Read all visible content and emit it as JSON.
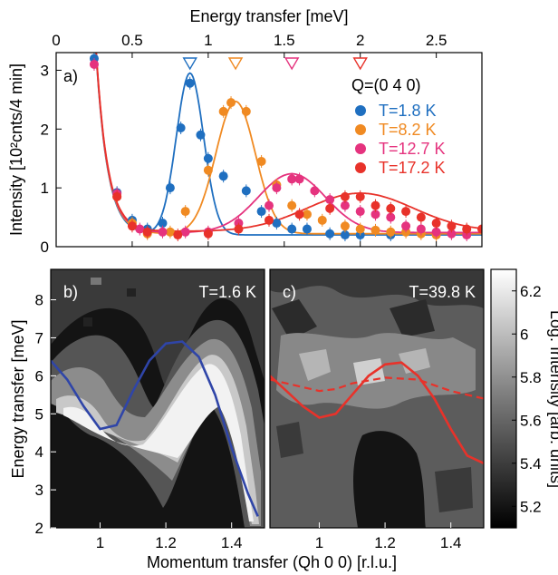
{
  "chart_data": [
    {
      "panel": "a)",
      "type": "line",
      "annotation": "Q=(0 4 0)",
      "xlabel": "Energy transfer [meV]",
      "ylabel": "Intensity [10²cnts/4 min]",
      "xlim": [
        0,
        2.8
      ],
      "ylim": [
        0,
        3.3
      ],
      "xticks": [
        "0",
        "0.5",
        "1",
        "1.5",
        "2",
        "2.5"
      ],
      "yticks": [
        "0",
        "1",
        "2",
        "3"
      ],
      "legend_position": "right",
      "series": [
        {
          "name": "T=1.8 K",
          "color": "#1f6fc0",
          "points": [
            [
              0.25,
              3.2
            ],
            [
              0.4,
              0.92
            ],
            [
              0.5,
              0.45
            ],
            [
              0.6,
              0.3
            ],
            [
              0.7,
              0.4
            ],
            [
              0.75,
              1.0
            ],
            [
              0.82,
              2.02
            ],
            [
              0.88,
              2.78
            ],
            [
              0.95,
              1.9
            ],
            [
              1.0,
              1.5
            ],
            [
              1.1,
              1.2
            ],
            [
              1.25,
              0.95
            ],
            [
              1.35,
              0.6
            ],
            [
              1.45,
              0.4
            ],
            [
              1.55,
              0.3
            ],
            [
              1.65,
              0.3
            ],
            [
              1.8,
              0.22
            ],
            [
              1.9,
              0.2
            ],
            [
              2.0,
              0.2
            ],
            [
              2.2,
              0.2
            ]
          ],
          "fit_peak": 0.88,
          "fit_amp": 2.75,
          "fit_width": 0.09
        },
        {
          "name": "T=8.2 K",
          "color": "#f08a22",
          "points": [
            [
              0.4,
              0.85
            ],
            [
              0.5,
              0.4
            ],
            [
              0.6,
              0.22
            ],
            [
              0.75,
              0.25
            ],
            [
              0.85,
              0.6
            ],
            [
              1.0,
              1.3
            ],
            [
              1.1,
              2.3
            ],
            [
              1.15,
              2.45
            ],
            [
              1.25,
              2.3
            ],
            [
              1.35,
              1.45
            ],
            [
              1.45,
              1.05
            ],
            [
              1.55,
              0.7
            ],
            [
              1.65,
              0.55
            ],
            [
              1.75,
              0.45
            ],
            [
              1.9,
              0.35
            ],
            [
              2.0,
              0.3
            ],
            [
              2.1,
              0.28
            ],
            [
              2.2,
              0.25
            ],
            [
              2.3,
              0.25
            ],
            [
              2.4,
              0.22
            ],
            [
              2.5,
              0.2
            ]
          ],
          "fit_peak": 1.18,
          "fit_amp": 2.25,
          "fit_width": 0.13
        },
        {
          "name": "T=12.7 K",
          "color": "#e5337e",
          "points": [
            [
              0.25,
              3.1
            ],
            [
              0.4,
              0.9
            ],
            [
              0.55,
              0.3
            ],
            [
              0.7,
              0.25
            ],
            [
              0.85,
              0.25
            ],
            [
              1.0,
              0.25
            ],
            [
              1.2,
              0.4
            ],
            [
              1.4,
              0.7
            ],
            [
              1.45,
              1.0
            ],
            [
              1.55,
              1.15
            ],
            [
              1.6,
              1.15
            ],
            [
              1.7,
              0.95
            ],
            [
              1.8,
              0.8
            ],
            [
              1.9,
              0.7
            ],
            [
              2.0,
              0.6
            ],
            [
              2.1,
              0.55
            ],
            [
              2.2,
              0.5
            ],
            [
              2.3,
              0.35
            ],
            [
              2.4,
              0.3
            ],
            [
              2.5,
              0.25
            ],
            [
              2.6,
              0.22
            ],
            [
              2.7,
              0.2
            ]
          ],
          "fit_peak": 1.55,
          "fit_amp": 1.0,
          "fit_width": 0.22
        },
        {
          "name": "T=17.2 K",
          "color": "#e8322a",
          "points": [
            [
              0.4,
              0.85
            ],
            [
              0.5,
              0.35
            ],
            [
              0.6,
              0.25
            ],
            [
              0.8,
              0.2
            ],
            [
              1.0,
              0.22
            ],
            [
              1.2,
              0.3
            ],
            [
              1.4,
              0.45
            ],
            [
              1.6,
              0.55
            ],
            [
              1.8,
              0.65
            ],
            [
              1.9,
              0.85
            ],
            [
              2.0,
              0.85
            ],
            [
              2.1,
              0.7
            ],
            [
              2.2,
              0.65
            ],
            [
              2.3,
              0.6
            ],
            [
              2.4,
              0.5
            ],
            [
              2.5,
              0.4
            ],
            [
              2.6,
              0.35
            ],
            [
              2.7,
              0.3
            ],
            [
              2.8,
              0.3
            ]
          ],
          "fit_peak": 2.0,
          "fit_amp": 0.65,
          "fit_width": 0.35
        }
      ],
      "triangle_markers": [
        {
          "x": 0.88,
          "color": "#1f6fc0"
        },
        {
          "x": 1.18,
          "color": "#f08a22"
        },
        {
          "x": 1.55,
          "color": "#e5337e"
        },
        {
          "x": 2.0,
          "color": "#e8322a"
        }
      ]
    },
    {
      "panel": "b)",
      "type": "heatmap",
      "annotation": "T=1.6 K",
      "xlabel": "Momentum transfer (Qh 0 0) [r.l.u.]",
      "ylabel": "Energy transfer [meV]",
      "xlim": [
        0.85,
        1.5
      ],
      "ylim": [
        2,
        8.8
      ],
      "xticks": [
        "1",
        "1.2",
        "1.4"
      ],
      "yticks": [
        "2",
        "3",
        "4",
        "5",
        "6",
        "7",
        "8"
      ],
      "dispersion_curve": {
        "color": "#2f45a8",
        "points": [
          [
            0.85,
            6.4
          ],
          [
            0.9,
            5.9
          ],
          [
            0.95,
            5.2
          ],
          [
            1.0,
            4.6
          ],
          [
            1.05,
            4.7
          ],
          [
            1.1,
            5.6
          ],
          [
            1.15,
            6.4
          ],
          [
            1.2,
            6.85
          ],
          [
            1.25,
            6.9
          ],
          [
            1.3,
            6.5
          ],
          [
            1.35,
            5.5
          ],
          [
            1.4,
            4.1
          ],
          [
            1.45,
            2.9
          ],
          [
            1.48,
            2.3
          ]
        ]
      }
    },
    {
      "panel": "c)",
      "type": "heatmap",
      "annotation": "T=39.8 K",
      "xlabel": "Momentum transfer (Qh 0 0) [r.l.u.]",
      "xlim": [
        0.85,
        1.5
      ],
      "ylim": [
        2,
        8.8
      ],
      "xticks": [
        "1",
        "1.2",
        "1.4"
      ],
      "solid_curve": {
        "color": "#e8322a",
        "points": [
          [
            0.85,
            6.0
          ],
          [
            0.9,
            5.6
          ],
          [
            0.95,
            5.2
          ],
          [
            1.0,
            4.9
          ],
          [
            1.05,
            5.0
          ],
          [
            1.1,
            5.5
          ],
          [
            1.15,
            6.0
          ],
          [
            1.2,
            6.3
          ],
          [
            1.25,
            6.35
          ],
          [
            1.3,
            6.0
          ],
          [
            1.35,
            5.4
          ],
          [
            1.4,
            4.6
          ],
          [
            1.45,
            3.9
          ],
          [
            1.5,
            3.7
          ]
        ]
      },
      "dashed_curve": {
        "color": "#e8322a",
        "points": [
          [
            0.85,
            5.9
          ],
          [
            0.95,
            5.7
          ],
          [
            1.0,
            5.6
          ],
          [
            1.05,
            5.65
          ],
          [
            1.1,
            5.8
          ],
          [
            1.2,
            5.95
          ],
          [
            1.3,
            5.9
          ],
          [
            1.4,
            5.6
          ],
          [
            1.5,
            5.4
          ]
        ]
      }
    }
  ],
  "colorbar": {
    "label": "Log. Intensity [arb. units]",
    "ticks": [
      "5.2",
      "5.4",
      "5.6",
      "5.8",
      "6",
      "6.2"
    ],
    "range": [
      5.1,
      6.3
    ]
  }
}
